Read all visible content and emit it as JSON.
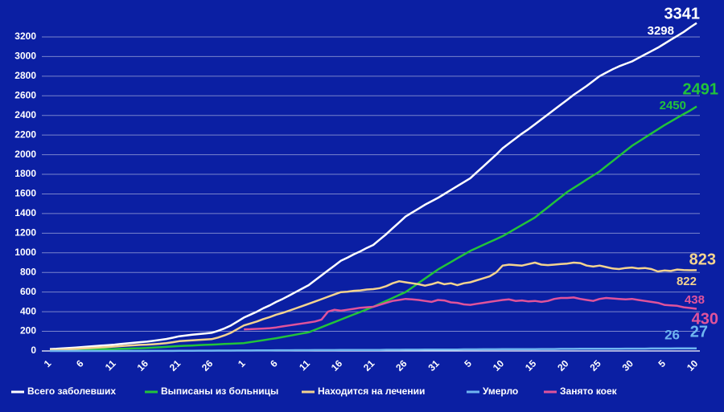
{
  "chart_data": {
    "type": "line",
    "categories": [
      "1",
      null,
      null,
      null,
      null,
      "6",
      null,
      null,
      null,
      null,
      "11",
      null,
      null,
      null,
      null,
      "16",
      null,
      null,
      null,
      null,
      "21",
      null,
      null,
      null,
      null,
      "26",
      null,
      null,
      null,
      null,
      "1",
      null,
      null,
      null,
      null,
      "6",
      null,
      null,
      null,
      null,
      "11",
      null,
      null,
      null,
      null,
      "16",
      null,
      null,
      null,
      null,
      "21",
      null,
      null,
      null,
      null,
      "26",
      null,
      null,
      null,
      null,
      "31",
      null,
      null,
      null,
      null,
      "5",
      null,
      null,
      null,
      null,
      "10",
      null,
      null,
      null,
      null,
      "15",
      null,
      null,
      null,
      null,
      "20",
      null,
      null,
      null,
      null,
      "25",
      null,
      null,
      null,
      null,
      "30",
      null,
      null,
      null,
      null,
      "5",
      null,
      null,
      null,
      null,
      "10"
    ],
    "series": [
      {
        "name": "Всего заболевших",
        "color": "#ffffff",
        "values": [
          20,
          22,
          26,
          30,
          35,
          40,
          45,
          50,
          55,
          60,
          65,
          72,
          78,
          84,
          90,
          95,
          103,
          112,
          122,
          135,
          150,
          158,
          165,
          172,
          178,
          185,
          205,
          230,
          260,
          300,
          340,
          370,
          400,
          435,
          465,
          500,
          530,
          565,
          600,
          635,
          670,
          720,
          770,
          820,
          870,
          920,
          950,
          985,
          1015,
          1050,
          1080,
          1135,
          1190,
          1250,
          1310,
          1370,
          1410,
          1450,
          1490,
          1525,
          1560,
          1600,
          1640,
          1680,
          1720,
          1760,
          1820,
          1880,
          1940,
          2000,
          2065,
          2115,
          2165,
          2215,
          2260,
          2310,
          2360,
          2410,
          2460,
          2510,
          2560,
          2610,
          2655,
          2700,
          2750,
          2800,
          2835,
          2870,
          2900,
          2925,
          2950,
          2985,
          3020,
          3055,
          3090,
          3130,
          3170,
          3210,
          3250,
          3298,
          3341
        ]
      },
      {
        "name": "Выписаны из больницы",
        "color": "#22c33a",
        "values": [
          10,
          11,
          12,
          13,
          14,
          15,
          16,
          17,
          18,
          19,
          20,
          22,
          24,
          26,
          28,
          30,
          34,
          38,
          42,
          46,
          50,
          53,
          56,
          59,
          62,
          65,
          68,
          71,
          74,
          77,
          80,
          90,
          100,
          110,
          120,
          130,
          142,
          154,
          166,
          178,
          190,
          216,
          242,
          268,
          294,
          320,
          346,
          372,
          398,
          424,
          450,
          480,
          510,
          540,
          570,
          600,
          646,
          692,
          738,
          784,
          830,
          868,
          906,
          944,
          982,
          1020,
          1050,
          1080,
          1110,
          1140,
          1170,
          1208,
          1246,
          1284,
          1322,
          1360,
          1412,
          1464,
          1516,
          1568,
          1620,
          1662,
          1704,
          1746,
          1788,
          1830,
          1882,
          1934,
          1986,
          2038,
          2090,
          2132,
          2174,
          2216,
          2258,
          2300,
          2338,
          2376,
          2414,
          2450,
          2491
        ]
      },
      {
        "name": "Находится на лечении",
        "color": "#f3d38f",
        "values": [
          10,
          11,
          14,
          17,
          21,
          25,
          29,
          33,
          37,
          41,
          45,
          50,
          54,
          58,
          62,
          65,
          69,
          74,
          80,
          89,
          100,
          105,
          109,
          113,
          116,
          120,
          137,
          159,
          186,
          223,
          260,
          280,
          300,
          325,
          345,
          370,
          388,
          411,
          434,
          457,
          480,
          504,
          528,
          552,
          576,
          600,
          604,
          613,
          617,
          626,
          630,
          640,
          660,
          690,
          710,
          700,
          690,
          680,
          665,
          680,
          700,
          680,
          690,
          670,
          690,
          700,
          720,
          740,
          760,
          800,
          870,
          880,
          875,
          870,
          885,
          900,
          880,
          875,
          880,
          885,
          890,
          900,
          895,
          870,
          860,
          870,
          855,
          840,
          835,
          845,
          850,
          840,
          845,
          835,
          810,
          820,
          815,
          830,
          825,
          822,
          823
        ]
      },
      {
        "name": "Умерло",
        "color": "#6fb5f0",
        "values": [
          0,
          0,
          0,
          0,
          0,
          0,
          0,
          0,
          0,
          0,
          0,
          0,
          0,
          0,
          0,
          0,
          1,
          1,
          1,
          1,
          2,
          2,
          2,
          3,
          3,
          3,
          4,
          4,
          4,
          5,
          5,
          5,
          6,
          6,
          6,
          7,
          7,
          7,
          8,
          8,
          8,
          9,
          9,
          9,
          9,
          10,
          10,
          10,
          10,
          11,
          11,
          11,
          12,
          12,
          12,
          13,
          13,
          13,
          14,
          14,
          14,
          15,
          15,
          15,
          16,
          16,
          16,
          17,
          17,
          17,
          18,
          18,
          18,
          19,
          19,
          19,
          20,
          20,
          20,
          21,
          21,
          21,
          22,
          22,
          22,
          23,
          23,
          23,
          23,
          24,
          24,
          24,
          24,
          25,
          25,
          25,
          25,
          26,
          26,
          26,
          27
        ]
      },
      {
        "name": "Занято коек",
        "color": "#e0539b",
        "values": [
          null,
          null,
          null,
          null,
          null,
          null,
          null,
          null,
          null,
          null,
          null,
          null,
          null,
          null,
          null,
          null,
          null,
          null,
          null,
          null,
          null,
          null,
          null,
          null,
          null,
          null,
          null,
          null,
          null,
          null,
          220,
          222,
          225,
          228,
          232,
          240,
          250,
          260,
          270,
          280,
          290,
          300,
          320,
          400,
          420,
          410,
          420,
          430,
          440,
          445,
          450,
          470,
          490,
          510,
          520,
          530,
          525,
          520,
          510,
          500,
          520,
          515,
          495,
          490,
          475,
          470,
          480,
          490,
          500,
          510,
          520,
          525,
          510,
          515,
          505,
          510,
          500,
          510,
          530,
          540,
          540,
          545,
          530,
          520,
          510,
          530,
          540,
          535,
          530,
          525,
          530,
          520,
          510,
          500,
          490,
          470,
          465,
          460,
          445,
          438,
          430
        ]
      }
    ],
    "ylim": [
      0,
      3400
    ],
    "yticks": [
      0,
      200,
      400,
      600,
      800,
      1000,
      1200,
      1400,
      1600,
      1800,
      2000,
      2200,
      2400,
      2600,
      2800,
      3000,
      3200
    ],
    "grid": true,
    "legend": "bottom"
  }
}
